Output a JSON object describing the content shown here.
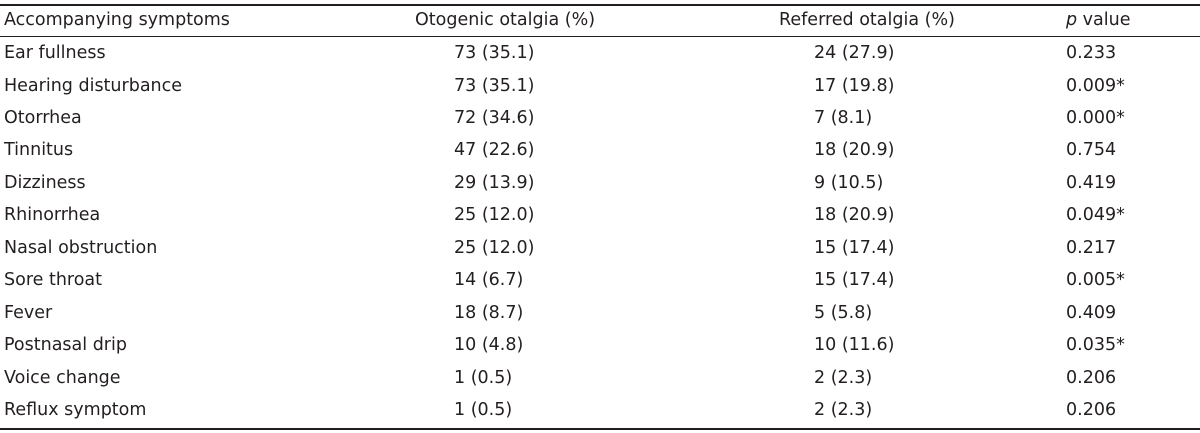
{
  "table": {
    "headers": {
      "symptom": "Accompanying symptoms",
      "otogenic": "Otogenic otalgia (%)",
      "referred": "Referred otalgia (%)",
      "p_italic": "p",
      "p_rest": " value"
    },
    "rows": [
      {
        "symptom": "Ear fullness",
        "otogenic": "73 (35.1)",
        "referred": "24 (27.9)",
        "p": "0.233"
      },
      {
        "symptom": "Hearing disturbance",
        "otogenic": "73 (35.1)",
        "referred": "17 (19.8)",
        "p": "0.009*"
      },
      {
        "symptom": "Otorrhea",
        "otogenic": "72 (34.6)",
        "referred": "7 (8.1)",
        "p": "0.000*"
      },
      {
        "symptom": "Tinnitus",
        "otogenic": "47 (22.6)",
        "referred": "18 (20.9)",
        "p": "0.754"
      },
      {
        "symptom": "Dizziness",
        "otogenic": "29 (13.9)",
        "referred": "9 (10.5)",
        "p": "0.419"
      },
      {
        "symptom": "Rhinorrhea",
        "otogenic": "25 (12.0)",
        "referred": "18 (20.9)",
        "p": "0.049*"
      },
      {
        "symptom": "Nasal obstruction",
        "otogenic": "25 (12.0)",
        "referred": "15 (17.4)",
        "p": "0.217"
      },
      {
        "symptom": "Sore throat",
        "otogenic": "14 (6.7)",
        "referred": "15 (17.4)",
        "p": "0.005*"
      },
      {
        "symptom": "Fever",
        "otogenic": "18 (8.7)",
        "referred": "5 (5.8)",
        "p": "0.409"
      },
      {
        "symptom": "Postnasal drip",
        "otogenic": "10 (4.8)",
        "referred": "10 (11.6)",
        "p": "0.035*"
      },
      {
        "symptom": "Voice change",
        "otogenic": "1 (0.5)",
        "referred": "2 (2.3)",
        "p": "0.206"
      },
      {
        "symptom": "Reflux symptom",
        "otogenic": "1 (0.5)",
        "referred": "2 (2.3)",
        "p": "0.206"
      }
    ]
  }
}
